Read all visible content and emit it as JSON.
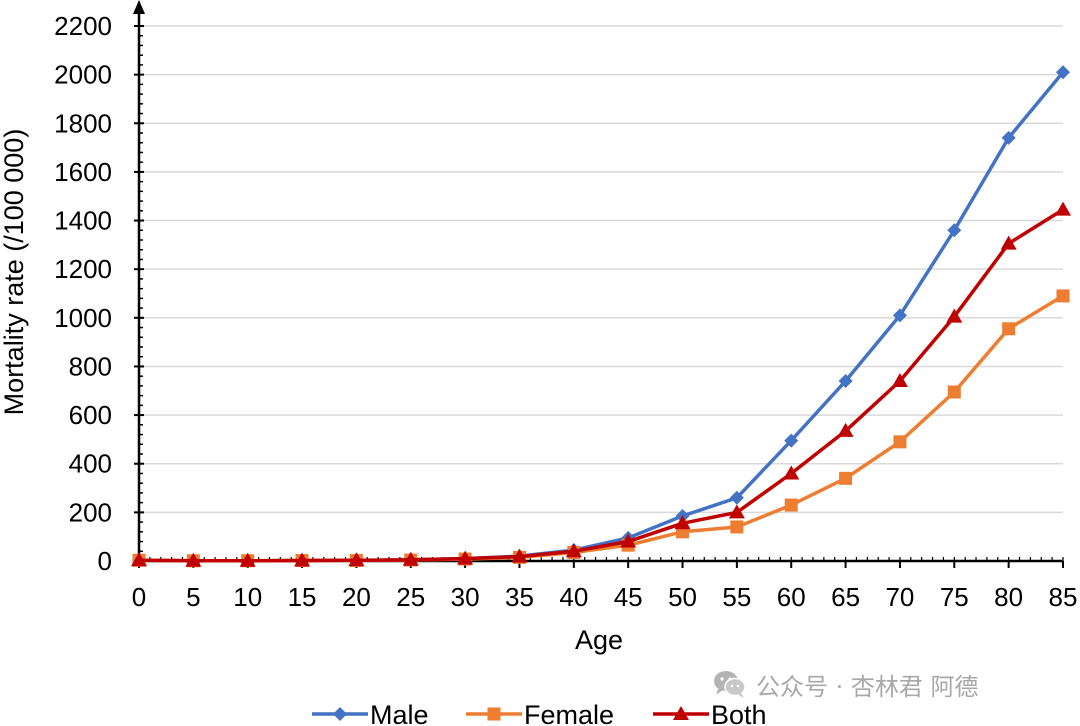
{
  "chart_data": {
    "type": "line",
    "x": [
      0,
      5,
      10,
      15,
      20,
      25,
      30,
      35,
      40,
      45,
      50,
      55,
      60,
      65,
      70,
      75,
      80,
      85
    ],
    "series": [
      {
        "name": "Male",
        "color": "#4472C4",
        "marker": "diamond",
        "values": [
          3,
          1,
          1,
          2,
          3,
          5,
          10,
          20,
          45,
          95,
          185,
          260,
          495,
          740,
          1010,
          1360,
          1740,
          2010
        ]
      },
      {
        "name": "Female",
        "color": "#ED7D31",
        "marker": "square",
        "values": [
          3,
          1,
          1,
          2,
          2,
          4,
          8,
          15,
          35,
          65,
          120,
          140,
          230,
          340,
          490,
          695,
          955,
          1090
        ]
      },
      {
        "name": "Both",
        "color": "#C00000",
        "marker": "triangle",
        "values": [
          3,
          1,
          1,
          2,
          3,
          5,
          10,
          18,
          40,
          80,
          155,
          200,
          360,
          535,
          740,
          1005,
          1305,
          1445
        ]
      }
    ],
    "xlabel": "Age",
    "ylabel": "Mortality rate (/100 000)",
    "ylim": [
      0,
      2200
    ],
    "yticks": [
      0,
      200,
      400,
      600,
      800,
      1000,
      1200,
      1400,
      1600,
      1800,
      2000,
      2200
    ],
    "xlim": [
      0,
      85
    ],
    "grid": "horizontal",
    "legend": "bottom"
  },
  "watermark": {
    "icon": "wechat-icon",
    "text": "公众号 · 杏林君 阿德"
  }
}
